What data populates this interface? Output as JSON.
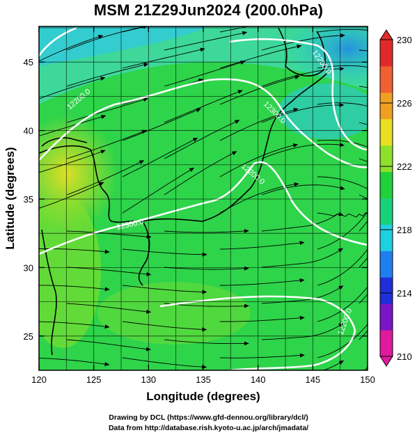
{
  "title": "MSM 21Z29Jun2024 (200.0hPa)",
  "xaxis": {
    "label": "Longitude (degrees)",
    "range": [
      120,
      150
    ],
    "ticks": [
      "120",
      "125",
      "130",
      "135",
      "140",
      "145",
      "150"
    ]
  },
  "yaxis": {
    "label": "Latitude  (degrees)",
    "range": [
      22.5,
      47.6
    ],
    "ticks": [
      "25",
      "30",
      "35",
      "40",
      "45"
    ]
  },
  "colorbar": {
    "min": 210,
    "max": 230,
    "tick_labels": [
      "230",
      "226",
      "222",
      "218",
      "214",
      "210"
    ],
    "colors": [
      "#e01a9c",
      "#7a16c8",
      "#1f2fd8",
      "#1f7ff0",
      "#1ed0e0",
      "#18d27a",
      "#20d23a",
      "#8ee02a",
      "#e8e020",
      "#f0a020",
      "#f06030",
      "#e02a2a"
    ]
  },
  "contours": [
    {
      "label": "12200.0"
    },
    {
      "label": "12300.0"
    },
    {
      "label": "12200.0"
    },
    {
      "label": "12200.0"
    },
    {
      "label": "12300.0"
    },
    {
      "label": "12200.0"
    }
  ],
  "footer": {
    "line1": "Drawing by DCL (https://www.gfd-dennou.org/library/dcl/)",
    "line2": "Data from http://database.rish.kyoto-u.ac.jp/arch/jmadata/"
  }
}
